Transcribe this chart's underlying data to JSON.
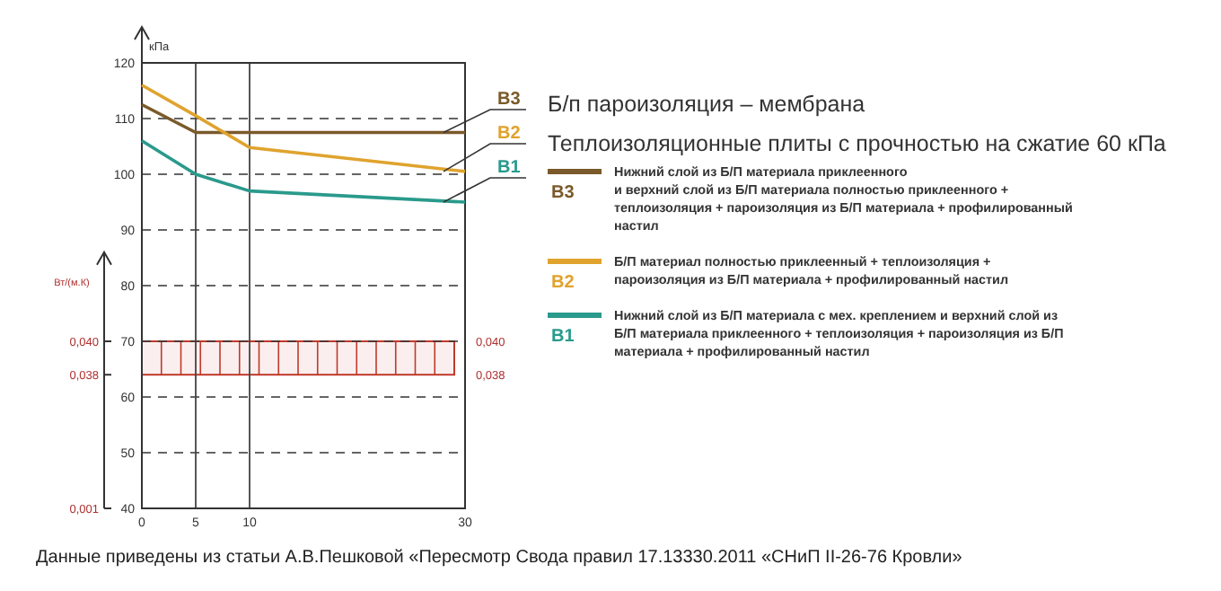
{
  "chart_data": {
    "type": "line",
    "title": "Б/п пароизоляция – мембрана",
    "subtitle": "Теплоизоляционные плиты с прочностью на сжатие 60 кПа",
    "ylabel": "кПа",
    "y2label": "Вт/(м.К)",
    "x": [
      0,
      5,
      10,
      30
    ],
    "xlim": [
      0,
      30
    ],
    "xticks": [
      0,
      5,
      10,
      30
    ],
    "ylim": [
      40,
      120
    ],
    "yticks": [
      40,
      50,
      60,
      70,
      80,
      90,
      100,
      110,
      120
    ],
    "series": [
      {
        "name": "В3",
        "color": "#7a5a2a",
        "values": [
          112.5,
          107.5,
          107.5,
          107.5
        ]
      },
      {
        "name": "В2",
        "color": "#e0a32e",
        "values": [
          116,
          110.5,
          104.8,
          100.5
        ]
      },
      {
        "name": "В1",
        "color": "#2a9a8c",
        "values": [
          106,
          100,
          97,
          95
        ]
      }
    ],
    "bands": [
      {
        "axis": "y",
        "from": 64,
        "to": 70,
        "color": "#c0392b"
      }
    ],
    "grid": true,
    "legend": "right",
    "marker": "none",
    "line_style": "solid",
    "annotations": [
      "Нижний слой из Б/П материала приклеенного\nи верхний слой из Б/П материала полностью приклеенного +\nтеплоизоляция + пароизоляция из Б/П материала + профилированный\nнастил",
      "Б/П материал полностью приклеенный + теплоизоляция +\nпароизоляция из Б/П материала + профилированный настил",
      "Нижний слой из Б/П материала с мех. креплением и верхний слой из\nБ/П материала приклеенного + теплоизоляция + пароизоляция из Б/П\nматериала + профилированный настил",
      "Данные приведены из статьи А.В.Пешковой «Пересмотр Свода правил 17.13330.2011  «СНиП II-26-76 Кровли»",
      "0,040",
      "0,038",
      "0,001",
      "0,040",
      "0,038"
    ]
  }
}
